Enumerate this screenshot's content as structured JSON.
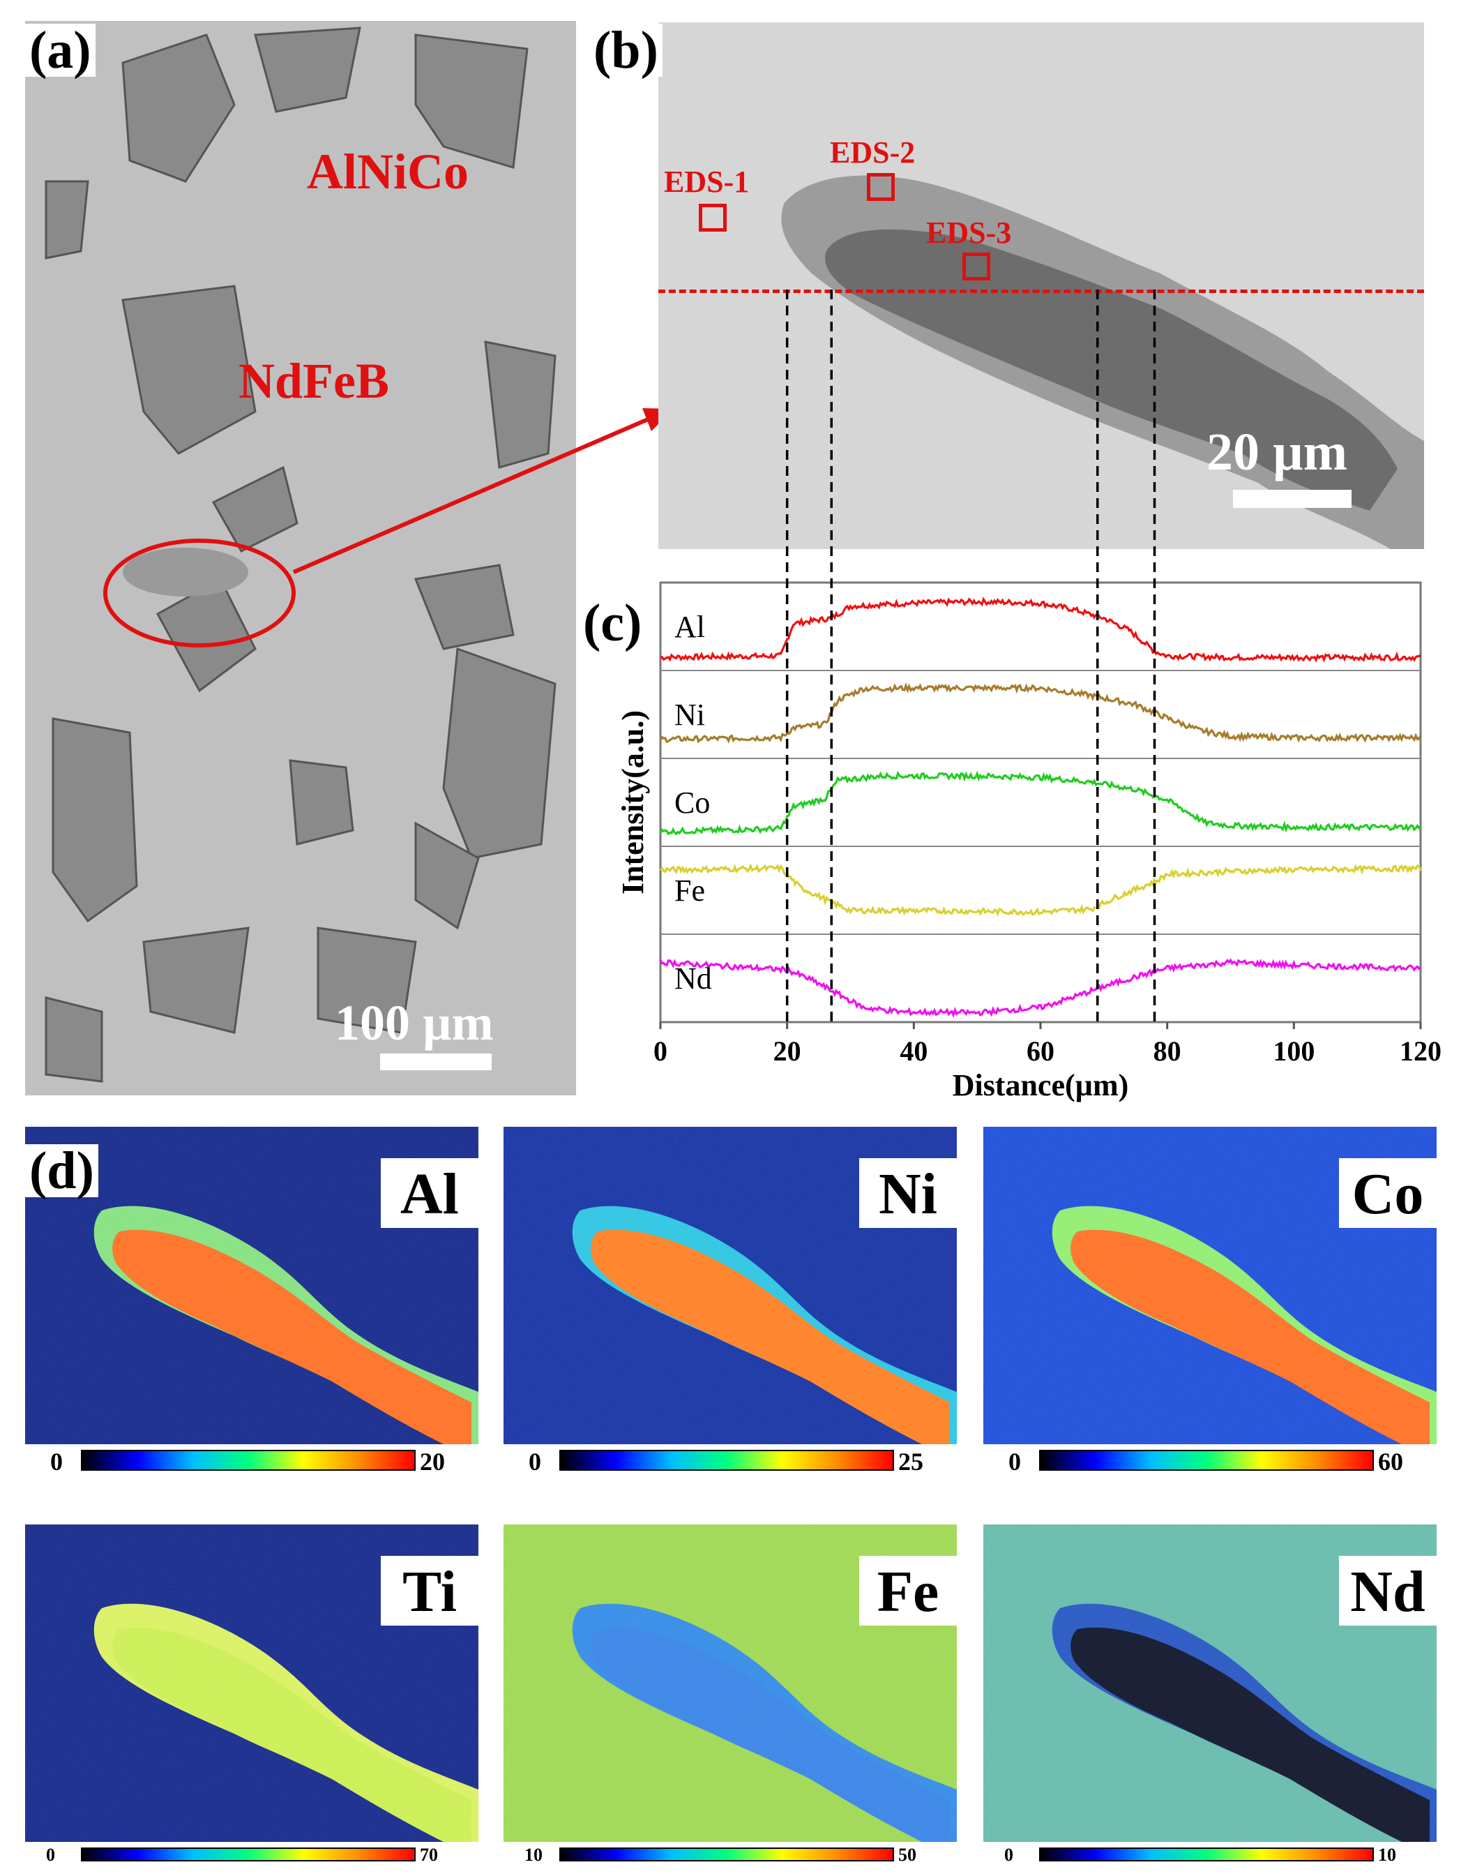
{
  "panel_a": {
    "label": "(a)",
    "alnico": "AlNiCo",
    "ndfeb": "NdFeB",
    "scale": "100 µm"
  },
  "panel_b": {
    "label": "(b)",
    "eds": [
      "EDS-1",
      "EDS-2",
      "EDS-3"
    ],
    "scale": "20 µm"
  },
  "panel_c": {
    "label": "(c)"
  },
  "panel_d": {
    "label": "(d)"
  },
  "chart_data": {
    "type": "line",
    "title": "",
    "xlabel": "Distance(µm)",
    "ylabel": "Intensity(a.u.)",
    "xlim": [
      0,
      120
    ],
    "xticks": [
      "0",
      "20",
      "40",
      "60",
      "80",
      "100",
      "120"
    ],
    "boundaries": [
      20,
      27,
      69,
      78
    ],
    "series": [
      {
        "name": "Al",
        "color": "#ee1111",
        "x": [
          0,
          19,
          21,
          27,
          30,
          40,
          50,
          60,
          65,
          70,
          74,
          78,
          80,
          90,
          100,
          120
        ],
        "values": [
          0.1,
          0.12,
          0.55,
          0.62,
          0.78,
          0.82,
          0.84,
          0.82,
          0.74,
          0.62,
          0.46,
          0.18,
          0.12,
          0.1,
          0.1,
          0.1
        ]
      },
      {
        "name": "Ni",
        "color": "#a67c2c",
        "x": [
          0,
          19,
          21,
          26,
          28,
          32,
          40,
          60,
          68,
          75,
          80,
          85,
          90,
          100,
          120
        ],
        "values": [
          0.18,
          0.2,
          0.33,
          0.38,
          0.7,
          0.85,
          0.86,
          0.86,
          0.76,
          0.64,
          0.46,
          0.3,
          0.22,
          0.2,
          0.2
        ]
      },
      {
        "name": "Co",
        "color": "#22cc22",
        "x": [
          0,
          19,
          21,
          26,
          28,
          35,
          50,
          60,
          68,
          75,
          80,
          86,
          90,
          100,
          120
        ],
        "values": [
          0.12,
          0.16,
          0.45,
          0.56,
          0.8,
          0.86,
          0.86,
          0.84,
          0.78,
          0.68,
          0.54,
          0.24,
          0.2,
          0.18,
          0.18
        ]
      },
      {
        "name": "Fe",
        "color": "#d8d030",
        "x": [
          0,
          19,
          22,
          27,
          30,
          40,
          60,
          68,
          72,
          78,
          80,
          90,
          100,
          120
        ],
        "values": [
          0.78,
          0.8,
          0.55,
          0.35,
          0.24,
          0.24,
          0.22,
          0.26,
          0.42,
          0.62,
          0.72,
          0.76,
          0.78,
          0.8
        ]
      },
      {
        "name": "Nd",
        "color": "#ee11ee",
        "x": [
          0,
          20,
          24,
          28,
          32,
          38,
          50,
          60,
          66,
          70,
          76,
          80,
          90,
          100,
          120
        ],
        "values": [
          0.72,
          0.62,
          0.48,
          0.3,
          0.12,
          0.06,
          0.05,
          0.12,
          0.28,
          0.4,
          0.55,
          0.64,
          0.72,
          0.68,
          0.64
        ]
      }
    ]
  },
  "maps": [
    {
      "element": "Al",
      "min": "0",
      "max": "20",
      "palette": "jet-dark"
    },
    {
      "element": "Ni",
      "min": "0",
      "max": "25",
      "palette": "jet-dark"
    },
    {
      "element": "Co",
      "min": "0",
      "max": "60",
      "palette": "jet-dark"
    },
    {
      "element": "Ti",
      "min": "0",
      "max": "70",
      "palette": "jet-dark"
    },
    {
      "element": "Fe",
      "min": "10",
      "max": "50",
      "palette": "jet-dark"
    },
    {
      "element": "Nd",
      "min": "0",
      "max": "10",
      "palette": "jet-dark"
    }
  ],
  "colors": {
    "annotation_red": "#e01010",
    "map_background": "#0b1f8a"
  }
}
